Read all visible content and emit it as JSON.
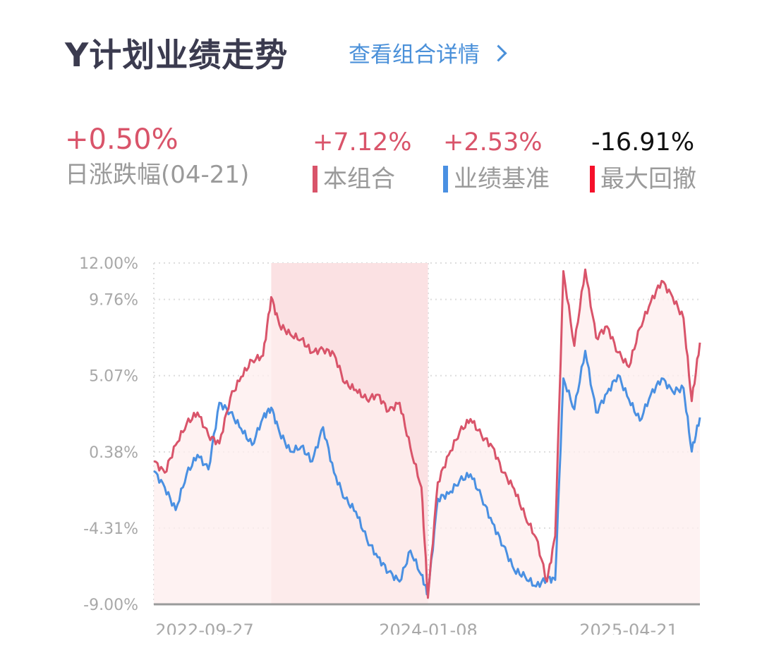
{
  "header": {
    "title": "Y计划业绩走势",
    "detail_link": "查看组合详情",
    "detail_icon": "chevron-right-icon"
  },
  "stats": {
    "daily": {
      "value": "+0.50%",
      "label": "日涨跌幅(04-21)"
    },
    "portfolio": {
      "value": "+7.12%",
      "label": "本组合",
      "color": "#d9546a"
    },
    "benchmark": {
      "value": "+2.53%",
      "label": "业绩基准",
      "color": "#4a90e2"
    },
    "max_drawdown": {
      "value": "-16.91%",
      "label": "最大回撤",
      "color": "#f5102a"
    }
  },
  "colors": {
    "title": "#3b3b4f",
    "link": "#4a90d9",
    "positive": "#d9546a",
    "portfolio_line": "#d9546a",
    "benchmark_line": "#4a90e2",
    "drawdown_marker": "#f5102a",
    "fill": "#fdeeee",
    "drawdown_fill": "#fbe1e3",
    "axis_text": "#a8a8a8"
  },
  "chart_data": {
    "type": "line",
    "title": "Y计划业绩走势",
    "xlabel": "",
    "ylabel": "",
    "ylim": [
      -9.0,
      12.0
    ],
    "yticks": [
      "12.00%",
      "9.76%",
      "5.07%",
      "0.38%",
      "-4.31%",
      "-9.00%"
    ],
    "ytick_values": [
      12.0,
      9.76,
      5.07,
      0.38,
      -4.31,
      -9.0
    ],
    "xticks": [
      "2022-09-27",
      "2024-01-08",
      "2025-04-21"
    ],
    "x_range": [
      "2022-09-27",
      "2025-04-21"
    ],
    "grid": true,
    "legend_position": "top",
    "drawdown_region": {
      "start_frac": 0.215,
      "end_frac": 0.502
    },
    "x": [
      0,
      0.02,
      0.04,
      0.06,
      0.08,
      0.1,
      0.12,
      0.14,
      0.16,
      0.18,
      0.2,
      0.215,
      0.23,
      0.25,
      0.27,
      0.29,
      0.31,
      0.33,
      0.35,
      0.37,
      0.39,
      0.41,
      0.43,
      0.45,
      0.47,
      0.49,
      0.502,
      0.52,
      0.54,
      0.56,
      0.58,
      0.6,
      0.62,
      0.64,
      0.66,
      0.68,
      0.7,
      0.72,
      0.735,
      0.75,
      0.77,
      0.79,
      0.81,
      0.83,
      0.85,
      0.87,
      0.89,
      0.91,
      0.93,
      0.95,
      0.97,
      0.985,
      1.0
    ],
    "series": [
      {
        "name": "本组合",
        "final_value": "+7.12%",
        "values": [
          -0.2,
          -0.9,
          0.8,
          2.1,
          2.8,
          1.4,
          0.9,
          3.7,
          5.0,
          6.0,
          6.3,
          9.9,
          8.2,
          7.6,
          7.3,
          6.5,
          6.7,
          6.4,
          4.6,
          4.2,
          3.6,
          3.9,
          2.9,
          3.4,
          0.6,
          -1.8,
          -8.6,
          -1.5,
          0.2,
          1.6,
          2.4,
          1.4,
          0.7,
          -0.9,
          -1.9,
          -3.6,
          -4.9,
          -7.6,
          -4.8,
          11.5,
          6.9,
          11.6,
          7.4,
          8.1,
          6.5,
          5.6,
          8.0,
          9.6,
          10.9,
          9.9,
          8.6,
          3.5,
          7.1
        ]
      },
      {
        "name": "业绩基准",
        "final_value": "+2.53%",
        "values": [
          -0.8,
          -1.8,
          -3.2,
          -1.0,
          0.2,
          -0.7,
          3.4,
          2.8,
          1.8,
          0.8,
          2.5,
          3.1,
          1.6,
          0.4,
          0.7,
          -0.2,
          1.9,
          -0.9,
          -2.5,
          -3.3,
          -5.0,
          -6.1,
          -7.0,
          -7.6,
          -5.7,
          -7.2,
          -8.4,
          -2.5,
          -2.2,
          -1.4,
          -1.0,
          -2.4,
          -4.0,
          -5.4,
          -6.9,
          -7.3,
          -7.9,
          -7.4,
          -7.5,
          4.9,
          3.0,
          6.6,
          2.8,
          4.0,
          5.1,
          3.6,
          2.3,
          3.9,
          4.9,
          4.1,
          4.3,
          0.4,
          2.5
        ]
      }
    ]
  },
  "chart_ticks_display": {
    "y": [
      "12.00%",
      "9.76%",
      "5.07%",
      "0.38%",
      "-4.31%",
      "-9.00%"
    ],
    "x": [
      "2022-09-27",
      "2024-01-08",
      "2025-04-21"
    ]
  }
}
